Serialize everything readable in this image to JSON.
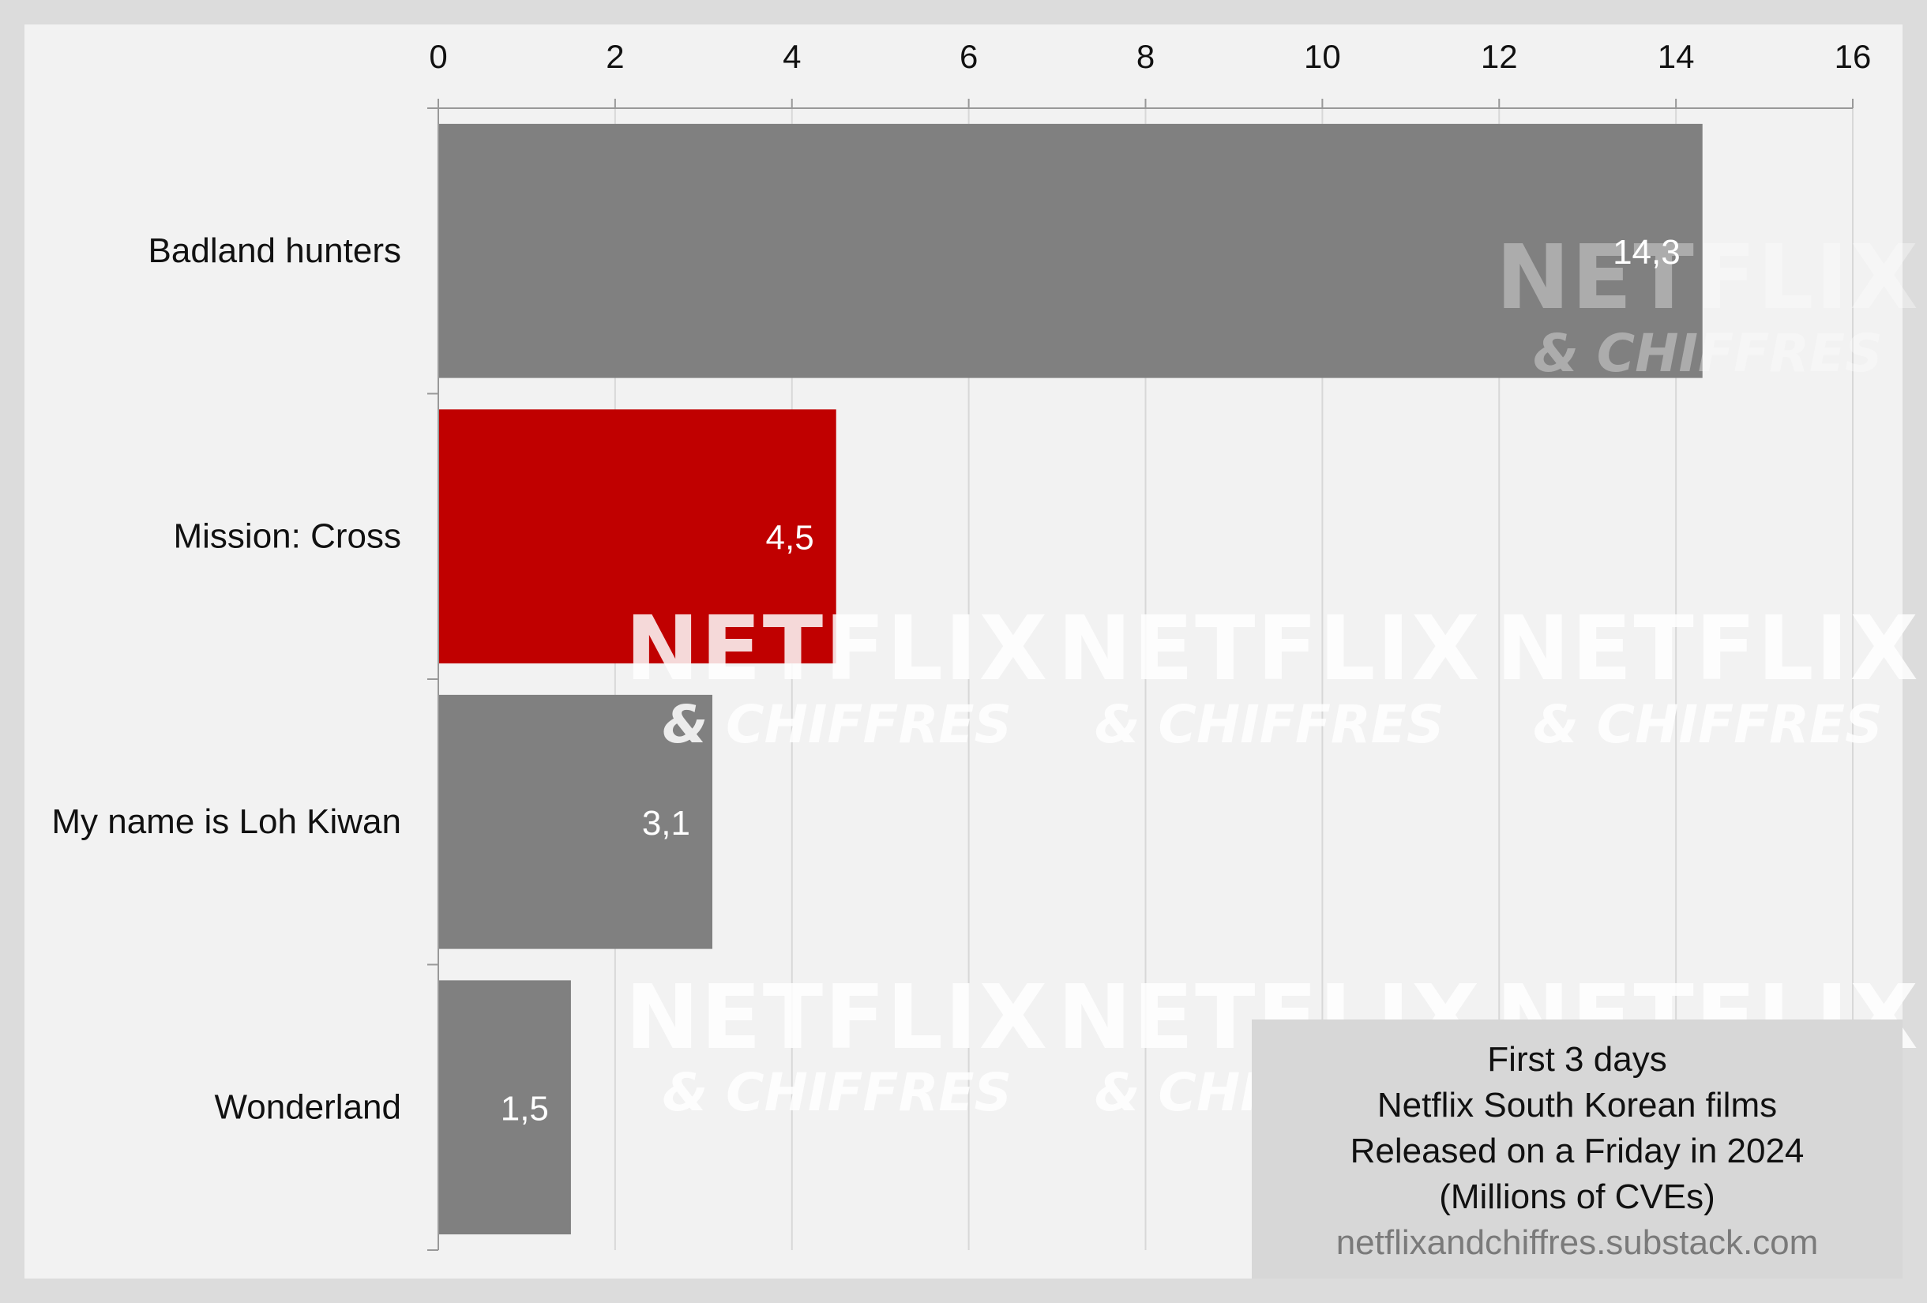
{
  "chart_data": {
    "type": "bar",
    "orientation": "horizontal",
    "categories": [
      "Badland hunters",
      "Mission: Cross",
      "My name is Loh Kiwan",
      "Wonderland"
    ],
    "values": [
      14.3,
      4.5,
      3.1,
      1.5
    ],
    "value_labels": [
      "14,3",
      "4,5",
      "3,1",
      "1,5"
    ],
    "highlight_index": 1,
    "colors": {
      "default_bar": "#808080",
      "highlight_bar": "#c00000",
      "grid": "#d8d8d8",
      "axis": "#999999",
      "panel_background": "#f2f2f2",
      "page_background": "#dcdcdc"
    },
    "xlim": [
      0,
      16
    ],
    "xticks": [
      0,
      2,
      4,
      6,
      8,
      10,
      12,
      14,
      16
    ],
    "xaxis_position": "top",
    "grid": true
  },
  "annotation": {
    "line1": "First 3 days",
    "line2": "Netflix South Korean films",
    "line3": "Released on a Friday in 2024",
    "line4": "(Millions of CVEs)",
    "source": "netflixandchiffres.substack.com"
  },
  "watermark": {
    "brand": "NETFLIX",
    "sub": "& CHIFFRES"
  }
}
